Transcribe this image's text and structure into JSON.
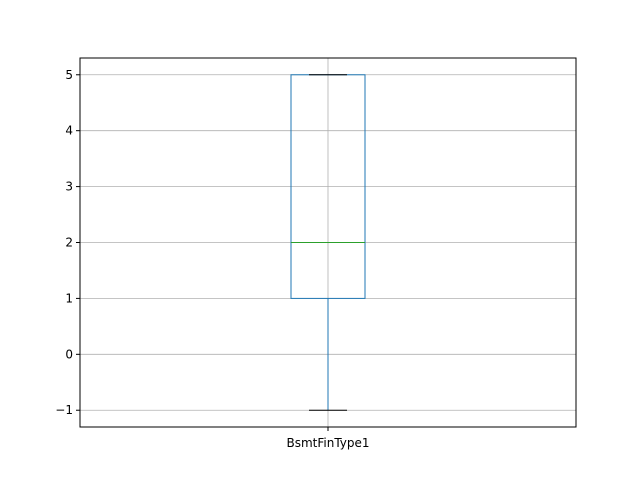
{
  "chart_data": {
    "type": "box",
    "categories": [
      "BsmtFinType1"
    ],
    "boxes": [
      {
        "name": "BsmtFinType1",
        "whisker_low": -1,
        "q1": 1,
        "median": 2,
        "q3": 5,
        "whisker_high": 5
      }
    ],
    "yticks": [
      -1,
      0,
      1,
      2,
      3,
      4,
      5
    ],
    "ytick_labels": [
      "−1",
      "0",
      "1",
      "2",
      "3",
      "4",
      "5"
    ],
    "ylim": [
      -1.3,
      5.3
    ],
    "grid": true,
    "colors": {
      "box": "#1f77b4",
      "median": "#2ca02c",
      "caps": "#000000",
      "grid": "#b0b0b0"
    }
  }
}
